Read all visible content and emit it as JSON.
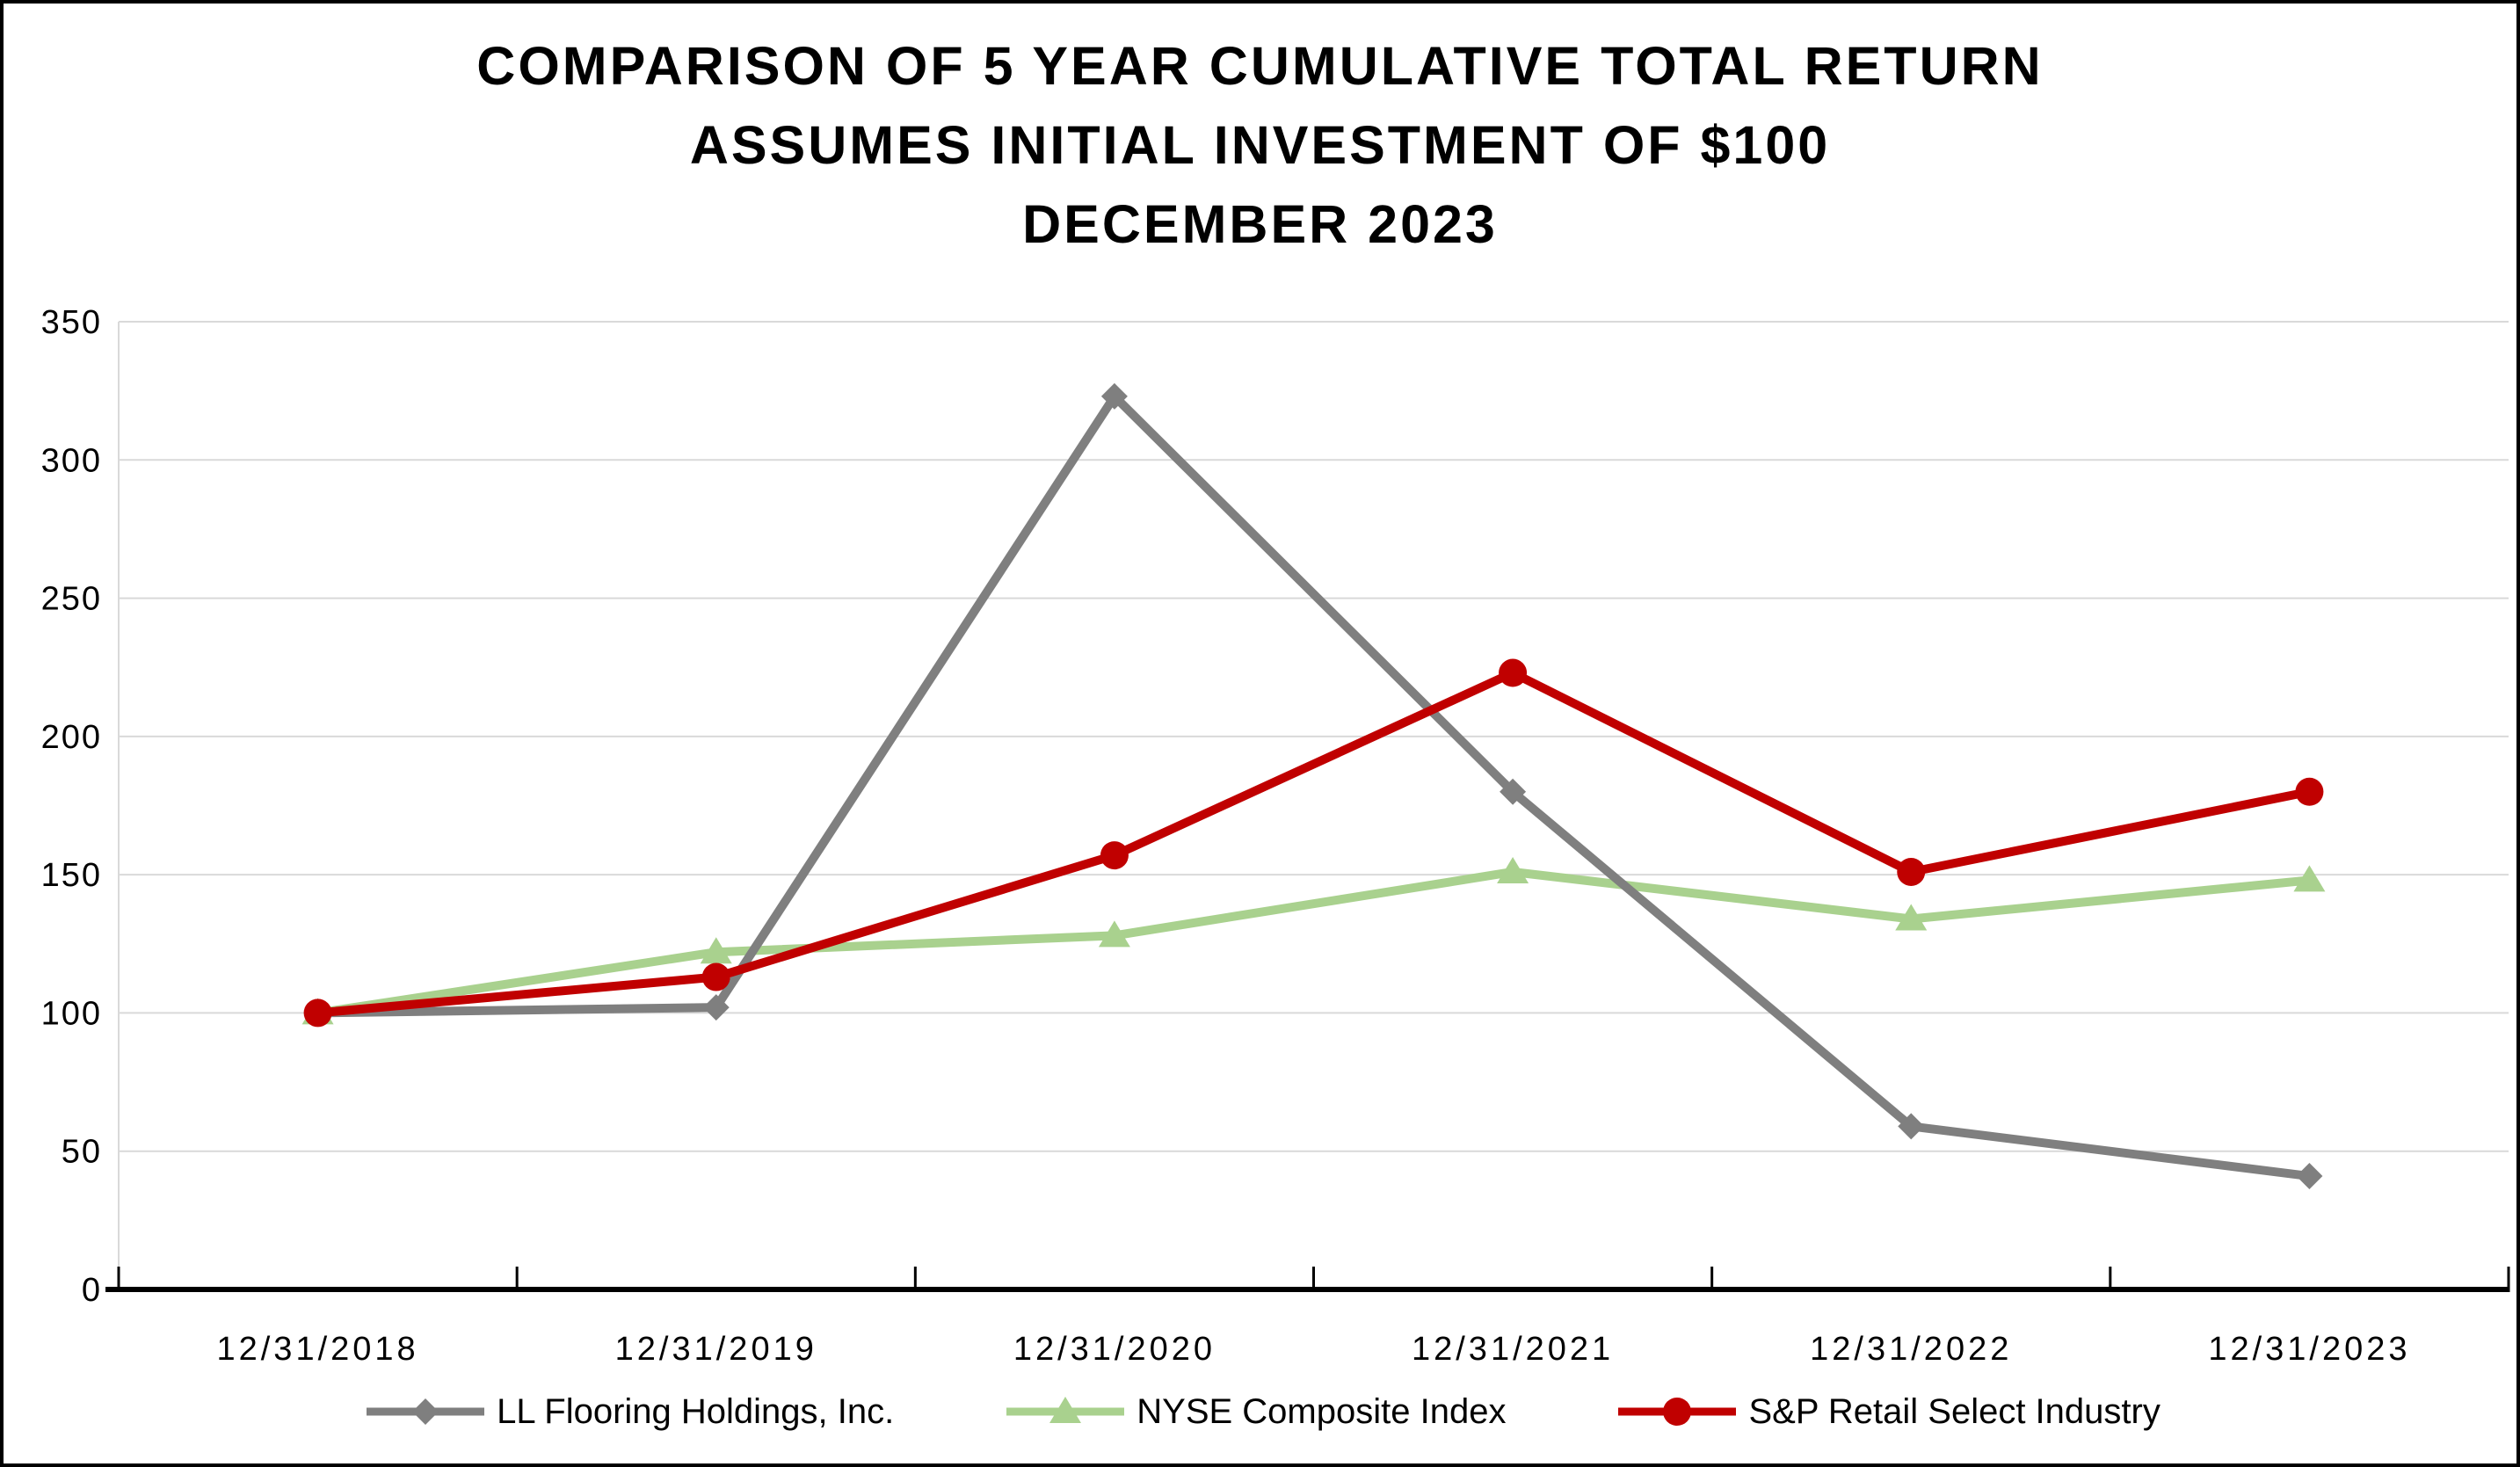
{
  "title": {
    "line1": "COMPARISON OF 5 YEAR CUMULATIVE TOTAL RETURN",
    "line2": "ASSUMES INITIAL INVESTMENT OF $100",
    "line3": "DECEMBER 2023"
  },
  "chart_data": {
    "type": "line",
    "title": "COMPARISON OF 5 YEAR CUMULATIVE TOTAL RETURN — ASSUMES INITIAL INVESTMENT OF $100 — DECEMBER 2023",
    "categories": [
      "12/31/2018",
      "12/31/2019",
      "12/31/2020",
      "12/31/2021",
      "12/31/2022",
      "12/31/2023"
    ],
    "series": [
      {
        "name": "LL Flooring Holdings, Inc.",
        "marker": "diamond",
        "color": "#7F7F7F",
        "values": [
          100,
          102,
          323,
          180,
          59,
          41
        ]
      },
      {
        "name": "NYSE Composite Index",
        "marker": "triangle",
        "color": "#A9D18E",
        "values": [
          100,
          122,
          128,
          151,
          134,
          148
        ]
      },
      {
        "name": "S&P Retail Select Industry",
        "marker": "circle",
        "color": "#C00000",
        "values": [
          100,
          113,
          157,
          223,
          151,
          180
        ]
      }
    ],
    "xlabel": "",
    "ylabel": "",
    "ylim": [
      0,
      350
    ],
    "yticks": [
      0,
      50,
      100,
      150,
      200,
      250,
      300,
      350
    ],
    "grid": "horizontal-only",
    "gridline_color": "#D9D9D9",
    "axis_color": "#000000",
    "text_color": "#000000",
    "legend_position": "bottom"
  }
}
